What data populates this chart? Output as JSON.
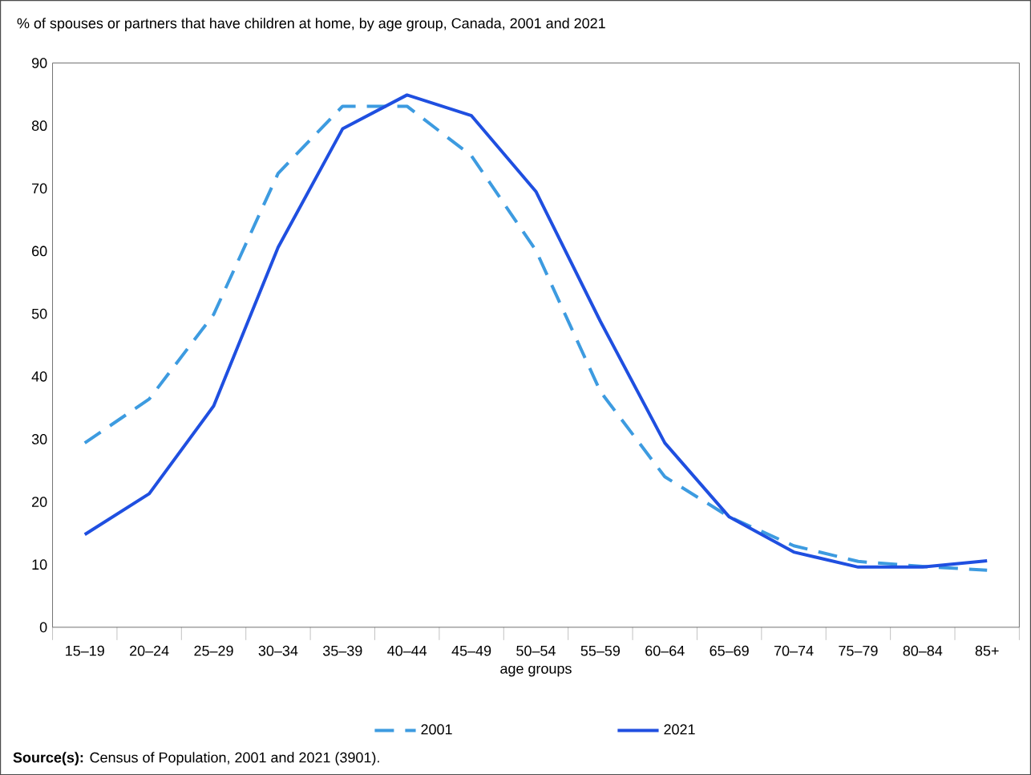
{
  "chart_data": {
    "type": "line",
    "title": "% of spouses or partners that have children at home, by age group, Canada, 2001 and 2021",
    "xlabel": "age groups",
    "categories": [
      "15–19",
      "20–24",
      "25–29",
      "30–34",
      "35–39",
      "40–44",
      "45–49",
      "50–54",
      "55–59",
      "60–64",
      "65–69",
      "70–74",
      "75–79",
      "80–84",
      "85+"
    ],
    "series": [
      {
        "name": "2001",
        "color": "#3d9be0",
        "line_style": "dashed",
        "values": [
          29.4,
          36.4,
          49.9,
          72.4,
          83.1,
          83.1,
          75.2,
          60.1,
          37.6,
          24.0,
          17.6,
          13.0,
          10.5,
          9.7,
          9.1
        ]
      },
      {
        "name": "2021",
        "color": "#1f4fe0",
        "line_style": "solid",
        "values": [
          14.8,
          21.3,
          35.3,
          60.6,
          79.5,
          84.9,
          81.6,
          69.5,
          48.8,
          29.4,
          17.6,
          12.0,
          9.6,
          9.6,
          10.6
        ]
      }
    ],
    "ylim": [
      0,
      90
    ],
    "yticks": [
      0,
      10,
      20,
      30,
      40,
      50,
      60,
      70,
      80,
      90
    ],
    "grid": false,
    "legend": "bottom",
    "marker": "none",
    "annotations": [
      "**Source(s):** Census of Population, 2001 and 2021 (3901)."
    ]
  }
}
